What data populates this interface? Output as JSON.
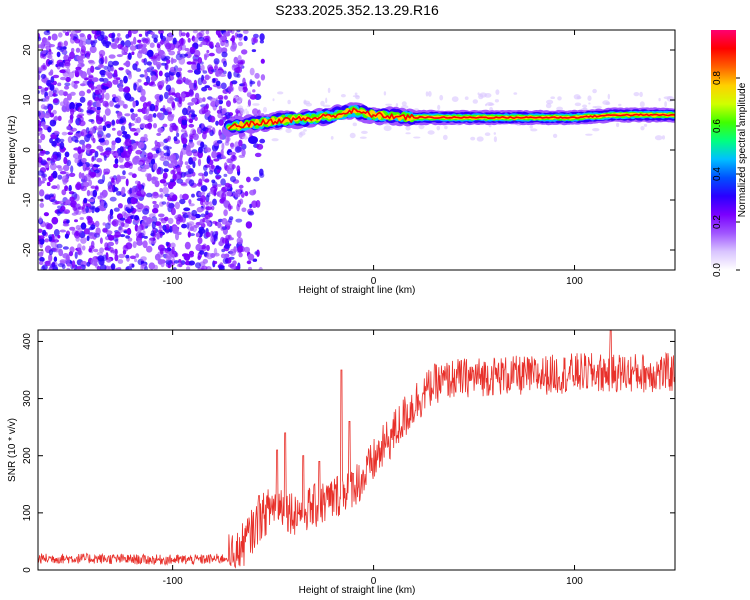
{
  "title": "S233.2025.352.13.29.R16",
  "chart_data": [
    {
      "type": "heatmap",
      "xlabel": "Height of straight line (km)",
      "ylabel": "Frequency (Hz)",
      "xlim": [
        -167,
        150
      ],
      "ylim": [
        -24,
        24
      ],
      "x_ticks": [
        -100,
        0,
        100
      ],
      "y_ticks": [
        -20,
        -10,
        0,
        10,
        20
      ],
      "tone_frequency_hz": [
        {
          "height_km": -72,
          "freq_hz": 4.5
        },
        {
          "height_km": -65,
          "freq_hz": 5.0
        },
        {
          "height_km": -55,
          "freq_hz": 5.5
        },
        {
          "height_km": -45,
          "freq_hz": 6.0
        },
        {
          "height_km": -30,
          "freq_hz": 6.3
        },
        {
          "height_km": -20,
          "freq_hz": 7.0
        },
        {
          "height_km": -10,
          "freq_hz": 7.8
        },
        {
          "height_km": 0,
          "freq_hz": 7.0
        },
        {
          "height_km": 20,
          "freq_hz": 6.5
        },
        {
          "height_km": 60,
          "freq_hz": 6.5
        },
        {
          "height_km": 100,
          "freq_hz": 6.5
        },
        {
          "height_km": 120,
          "freq_hz": 7.0
        },
        {
          "height_km": 150,
          "freq_hz": 7.0
        }
      ],
      "noise_region_km": [
        -167,
        -65
      ],
      "colorbar": {
        "label": "Normalized spectral amplitude",
        "range": [
          0,
          1
        ],
        "ticks": [
          "0.0",
          "0.2",
          "0.4",
          "0.6",
          "0.8"
        ],
        "colors": [
          "#ffffff",
          "#d9c4ff",
          "#a055ff",
          "#7a00ff",
          "#2a00ff",
          "#0050ff",
          "#00c0ff",
          "#00ff80",
          "#40ff00",
          "#d0ff00",
          "#ffd000",
          "#ff6000",
          "#ff0000",
          "#ff0070"
        ]
      }
    },
    {
      "type": "line",
      "xlabel": "Height of straight line (km)",
      "ylabel": "SNR (10 * v/v)",
      "xlim": [
        -167,
        150
      ],
      "ylim": [
        0,
        420
      ],
      "x_ticks": [
        -100,
        0,
        100
      ],
      "y_ticks": [
        0,
        100,
        200,
        300,
        400
      ],
      "line_color": "#e8302a",
      "points": [
        {
          "x": -167,
          "y": 20
        },
        {
          "x": -140,
          "y": 20
        },
        {
          "x": -110,
          "y": 18
        },
        {
          "x": -90,
          "y": 18
        },
        {
          "x": -75,
          "y": 20
        },
        {
          "x": -68,
          "y": 28
        },
        {
          "x": -62,
          "y": 60
        },
        {
          "x": -55,
          "y": 95
        },
        {
          "x": -48,
          "y": 120
        },
        {
          "x": -40,
          "y": 100
        },
        {
          "x": -30,
          "y": 110
        },
        {
          "x": -20,
          "y": 125
        },
        {
          "x": -15,
          "y": 140
        },
        {
          "x": -10,
          "y": 150
        },
        {
          "x": -5,
          "y": 160
        },
        {
          "x": 0,
          "y": 190
        },
        {
          "x": 5,
          "y": 215
        },
        {
          "x": 10,
          "y": 240
        },
        {
          "x": 15,
          "y": 265
        },
        {
          "x": 20,
          "y": 290
        },
        {
          "x": 25,
          "y": 310
        },
        {
          "x": 30,
          "y": 325
        },
        {
          "x": 40,
          "y": 335
        },
        {
          "x": 60,
          "y": 340
        },
        {
          "x": 80,
          "y": 340
        },
        {
          "x": 100,
          "y": 345
        },
        {
          "x": 120,
          "y": 345
        },
        {
          "x": 150,
          "y": 345
        }
      ],
      "spikes": [
        {
          "x": -57,
          "y": 130
        },
        {
          "x": -48,
          "y": 210
        },
        {
          "x": -44,
          "y": 240
        },
        {
          "x": -35,
          "y": 200
        },
        {
          "x": -27,
          "y": 190
        },
        {
          "x": -16,
          "y": 350
        },
        {
          "x": -12,
          "y": 260
        },
        {
          "x": 118,
          "y": 420
        }
      ]
    }
  ]
}
